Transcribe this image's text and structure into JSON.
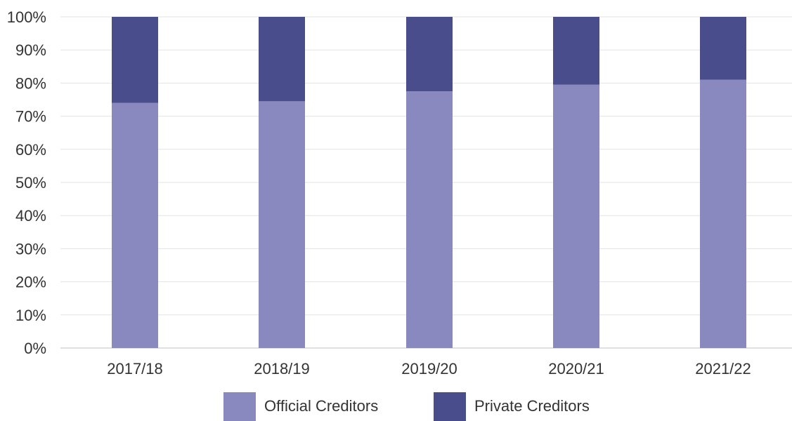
{
  "chart_data": {
    "type": "bar",
    "stacked": true,
    "categories": [
      "2017/18",
      "2018/19",
      "2019/20",
      "2020/21",
      "2021/22"
    ],
    "series": [
      {
        "name": "Official Creditors",
        "color": "#8a89bf",
        "values": [
          74,
          74.5,
          77.5,
          79.5,
          81
        ]
      },
      {
        "name": "Private Creditors",
        "color": "#494d8c",
        "values": [
          26,
          25.5,
          22.5,
          20.5,
          19
        ]
      }
    ],
    "ylim": [
      0,
      100
    ],
    "yticks": [
      "0%",
      "10%",
      "20%",
      "30%",
      "40%",
      "50%",
      "60%",
      "70%",
      "80%",
      "90%",
      "100%"
    ],
    "grid": true,
    "legend_position": "bottom",
    "title": "",
    "xlabel": "",
    "ylabel": ""
  }
}
